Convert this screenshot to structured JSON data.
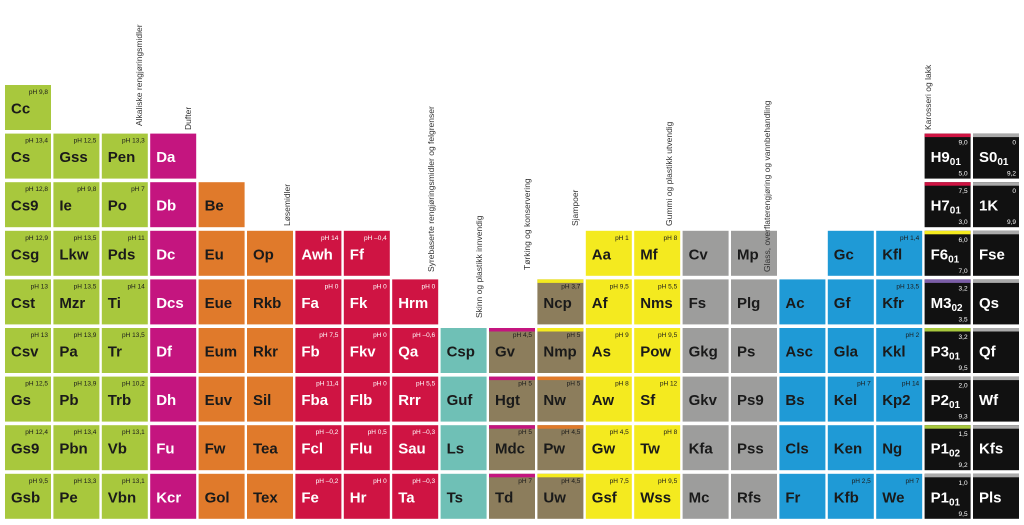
{
  "groups": [
    {
      "label": "Alkaliske rengjøringsmidler",
      "color": "#a8c83d",
      "text_color": "#1a1a1a",
      "columns": [
        [
          {
            "symbol": "Cc",
            "ph": "pH 9,8"
          },
          {
            "symbol": "Cs",
            "ph": "pH 13,4"
          },
          {
            "symbol": "Cs9",
            "ph": "pH 12,8"
          },
          {
            "symbol": "Csg",
            "ph": "pH 12,9"
          },
          {
            "symbol": "Cst",
            "ph": "pH 13"
          },
          {
            "symbol": "Csv",
            "ph": "pH 13"
          },
          {
            "symbol": "Gs",
            "ph": "pH 12,5"
          },
          {
            "symbol": "Gs9",
            "ph": "pH 12,4"
          },
          {
            "symbol": "Gsb",
            "ph": "pH 9,5"
          }
        ],
        [
          {
            "symbol": "Gss",
            "ph": "pH 12,5"
          },
          {
            "symbol": "Ie",
            "ph": "pH 9,8"
          },
          {
            "symbol": "Lkw",
            "ph": "pH 13,5"
          },
          {
            "symbol": "Mzr",
            "ph": "pH 13,5"
          },
          {
            "symbol": "Pa",
            "ph": "pH 13,9"
          },
          {
            "symbol": "Pb",
            "ph": "pH 13,9"
          },
          {
            "symbol": "Pbn",
            "ph": "pH 13,4"
          },
          {
            "symbol": "Pe",
            "ph": "pH 13,3"
          }
        ],
        [
          {
            "symbol": "Pen",
            "ph": "pH 13,3"
          },
          {
            "symbol": "Po",
            "ph": "pH 7"
          },
          {
            "symbol": "Pds",
            "ph": "pH 11"
          },
          {
            "symbol": "Ti",
            "ph": "pH 14"
          },
          {
            "symbol": "Tr",
            "ph": "pH 13,5"
          },
          {
            "symbol": "Trb",
            "ph": "pH 10,2"
          },
          {
            "symbol": "Vb",
            "ph": "pH 13,1"
          },
          {
            "symbol": "Vbn",
            "ph": "pH 13,1"
          }
        ]
      ]
    },
    {
      "label": "Dufter",
      "color": "#c4157f",
      "text_color": "#ffffff",
      "columns": [
        [
          {
            "symbol": "Da"
          },
          {
            "symbol": "Db"
          },
          {
            "symbol": "Dc"
          },
          {
            "symbol": "Dcs"
          },
          {
            "symbol": "Df"
          },
          {
            "symbol": "Dh"
          },
          {
            "symbol": "Fu"
          },
          {
            "symbol": "Kcr"
          }
        ]
      ]
    },
    {
      "label": "Løsemidler",
      "color": "#e07a2b",
      "text_color": "#1a1a1a",
      "columns": [
        [
          {
            "symbol": "Be"
          },
          {
            "symbol": "Eu"
          },
          {
            "symbol": "Eue"
          },
          {
            "symbol": "Eum"
          },
          {
            "symbol": "Euv"
          },
          {
            "symbol": "Fw"
          },
          {
            "symbol": "Gol"
          }
        ],
        [
          {
            "symbol": "Op"
          },
          {
            "symbol": "Rkb"
          },
          {
            "symbol": "Rkr"
          },
          {
            "symbol": "Sil"
          },
          {
            "symbol": "Tea"
          },
          {
            "symbol": "Tex"
          }
        ]
      ]
    },
    {
      "label": "Syrebaserte rengjøringsmidler og felgrenser",
      "color": "#cf1443",
      "text_color": "#ffffff",
      "columns": [
        [
          {
            "symbol": "Awh",
            "ph": "pH 14"
          },
          {
            "symbol": "Fa",
            "ph": "pH 0"
          },
          {
            "symbol": "Fb",
            "ph": "pH 7,5"
          },
          {
            "symbol": "Fba",
            "ph": "pH 11,4"
          },
          {
            "symbol": "Fcl",
            "ph": "pH –0,2"
          },
          {
            "symbol": "Fe",
            "ph": "pH –0,2"
          }
        ],
        [
          {
            "symbol": "Ff",
            "ph": "pH –0,4"
          },
          {
            "symbol": "Fk",
            "ph": "pH 0"
          },
          {
            "symbol": "Fkv",
            "ph": "pH 0"
          },
          {
            "symbol": "Flb",
            "ph": "pH 0"
          },
          {
            "symbol": "Flu",
            "ph": "pH 0,5"
          },
          {
            "symbol": "Hr",
            "ph": "pH 0"
          }
        ],
        [
          {
            "symbol": "Hrm",
            "ph": "pH 0"
          },
          {
            "symbol": "Qa",
            "ph": "pH –0,6"
          },
          {
            "symbol": "Rrr",
            "ph": "pH 5,5"
          },
          {
            "symbol": "Sau",
            "ph": "pH –0,3"
          },
          {
            "symbol": "Ta",
            "ph": "pH –0,3"
          }
        ]
      ]
    },
    {
      "label": "Skinn og plastikk innvendig",
      "color": "#6fc0b6",
      "text_color": "#1a1a1a",
      "columns": [
        [
          {
            "symbol": "Csp"
          },
          {
            "symbol": "Guf"
          },
          {
            "symbol": "Ls"
          },
          {
            "symbol": "Ts"
          }
        ]
      ]
    },
    {
      "label": "Tørking og konservering",
      "color": "#8c7d5c",
      "text_color": "#1a1a1a",
      "columns": [
        [
          {
            "symbol": "Gv",
            "ph": "pH 4,5",
            "stripe": "#c4157f"
          },
          {
            "symbol": "Hgt",
            "ph": "pH 5",
            "stripe": "#c4157f"
          },
          {
            "symbol": "Mdc",
            "ph": "pH 5",
            "stripe": "#c4157f"
          },
          {
            "symbol": "Td",
            "ph": "pH 7",
            "stripe": "#c4157f"
          }
        ],
        [
          {
            "symbol": "Ncp",
            "ph": "pH 3,7",
            "stripe": "#f4ea1f"
          },
          {
            "symbol": "Nmp",
            "ph": "pH 5",
            "stripe": "#f4ea1f"
          },
          {
            "symbol": "Nw",
            "ph": "pH 5",
            "stripe": "#e07a2b"
          },
          {
            "symbol": "Pw",
            "ph": "pH 4,5",
            "stripe": "#e07a2b"
          },
          {
            "symbol": "Uw",
            "ph": "pH 4,5",
            "stripe": "#f4ea1f"
          }
        ]
      ]
    },
    {
      "label": "Sjampoer",
      "color": "#f4ea1f",
      "text_color": "#1a1a1a",
      "columns": [
        [
          {
            "symbol": "Aa",
            "ph": "pH 1"
          },
          {
            "symbol": "Af",
            "ph": "pH 9,5"
          },
          {
            "symbol": "As",
            "ph": "pH 9"
          },
          {
            "symbol": "Aw",
            "ph": "pH 8"
          },
          {
            "symbol": "Gw",
            "ph": "pH 4,5"
          },
          {
            "symbol": "Gsf",
            "ph": "pH 7,5"
          }
        ],
        [
          {
            "symbol": "Mf",
            "ph": "pH 8"
          },
          {
            "symbol": "Nms",
            "ph": "pH 5,5"
          },
          {
            "symbol": "Pow",
            "ph": "pH 9,5"
          },
          {
            "symbol": "Sf",
            "ph": "pH 12"
          },
          {
            "symbol": "Tw",
            "ph": "pH 8"
          },
          {
            "symbol": "Wss",
            "ph": "pH 9,5"
          }
        ]
      ]
    },
    {
      "label": "Gummi og plastikk utvendig",
      "color": "#9d9d9c",
      "text_color": "#1a1a1a",
      "columns": [
        [
          {
            "symbol": "Cv"
          },
          {
            "symbol": "Fs"
          },
          {
            "symbol": "Gkg"
          },
          {
            "symbol": "Gkv"
          },
          {
            "symbol": "Kfa"
          },
          {
            "symbol": "Mc"
          }
        ],
        [
          {
            "symbol": "Mp"
          },
          {
            "symbol": "Plg"
          },
          {
            "symbol": "Ps"
          },
          {
            "symbol": "Ps9"
          },
          {
            "symbol": "Pss"
          },
          {
            "symbol": "Rfs"
          }
        ]
      ]
    },
    {
      "label": "Glass, overflaterengjøring og vannbehandling",
      "color": "#1f9ad6",
      "text_color": "#1a1a1a",
      "columns": [
        [
          {
            "symbol": "Ac"
          },
          {
            "symbol": "Asc"
          },
          {
            "symbol": "Bs"
          },
          {
            "symbol": "Cls"
          },
          {
            "symbol": "Fr"
          }
        ],
        [
          {
            "symbol": "Gc"
          },
          {
            "symbol": "Gf"
          },
          {
            "symbol": "Gla"
          },
          {
            "symbol": "Kel",
            "ph": "pH 7"
          },
          {
            "symbol": "Ken"
          },
          {
            "symbol": "Kfb",
            "ph": "pH 2,5"
          }
        ],
        [
          {
            "symbol": "Kfl",
            "ph": "pH 1,4"
          },
          {
            "symbol": "Kfr",
            "ph": "pH 13,5"
          },
          {
            "symbol": "Kkl",
            "ph": "pH 2"
          },
          {
            "symbol": "Kp2",
            "ph": "pH 14"
          },
          {
            "symbol": "Ng"
          },
          {
            "symbol": "We",
            "ph": "pH 7"
          }
        ]
      ]
    },
    {
      "label": "Karosseri og lakk",
      "color": "#111111",
      "text_color": "#ffffff",
      "columns": [
        [
          {
            "symbol": "H9",
            "sub": "01",
            "top": "9,0",
            "bottom": "5,0",
            "stripe": "#cf1443"
          },
          {
            "symbol": "H7",
            "sub": "01",
            "top": "7,5",
            "bottom": "3,0",
            "stripe": "#cf1443"
          },
          {
            "symbol": "F6",
            "sub": "01",
            "top": "6,0",
            "bottom": "7,0",
            "stripe": "#f4ea1f"
          },
          {
            "symbol": "M3",
            "sub": "02",
            "top": "3,2",
            "bottom": "3,5",
            "stripe": "#7b5ea7"
          },
          {
            "symbol": "P3",
            "sub": "01",
            "top": "3,2",
            "bottom": "9,5",
            "stripe": "#a8c83d"
          },
          {
            "symbol": "P2",
            "sub": "01",
            "top": "2,0",
            "bottom": "9,3",
            "stripe": "#aaaaaa"
          },
          {
            "symbol": "P1",
            "sub": "02",
            "top": "1,5",
            "bottom": "9,2",
            "stripe": "#a8c83d"
          },
          {
            "symbol": "P1",
            "sub": "01",
            "top": "1,0",
            "bottom": "9,5",
            "stripe": "#aaaaaa"
          }
        ],
        [
          {
            "symbol": "S0",
            "sub": "01",
            "top": "0",
            "bottom": "9,2",
            "stripe": "#aaaaaa"
          },
          {
            "symbol": "1K",
            "top": "0",
            "bottom": "9,9",
            "stripe": "#aaaaaa"
          },
          {
            "symbol": "Fse",
            "stripe": "#aaaaaa"
          },
          {
            "symbol": "Qs",
            "stripe": "#aaaaaa"
          },
          {
            "symbol": "Qf",
            "stripe": "#aaaaaa"
          },
          {
            "symbol": "Wf",
            "stripe": "#aaaaaa"
          },
          {
            "symbol": "Kfs",
            "stripe": "#aaaaaa"
          },
          {
            "symbol": "Pls",
            "stripe": "#aaaaaa"
          }
        ]
      ]
    }
  ]
}
